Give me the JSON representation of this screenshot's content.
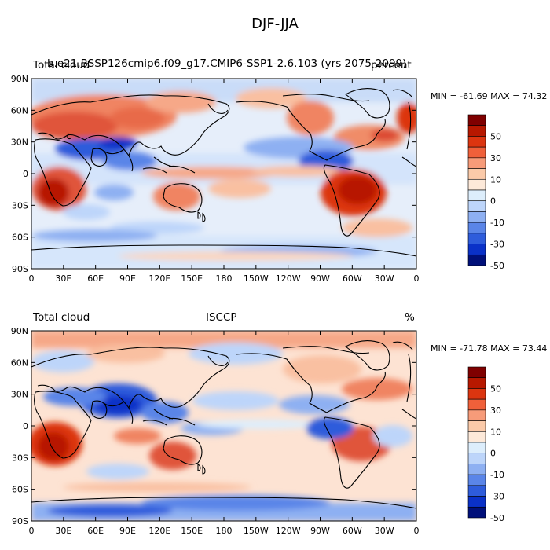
{
  "title": "DJF-JJA",
  "panels": [
    {
      "left_title": "Total cloud",
      "center_title": "b.e21.BSSP126cmip6.f09_g17.CMIP6-SSP1-2.6.103 (yrs 2075-2099)",
      "right_title": "percent",
      "minmax": "MIN = -61.69 MAX =  74.32"
    },
    {
      "left_title": "Total cloud",
      "center_title": "ISCCP",
      "right_title": "%",
      "minmax": "MIN = -71.78 MAX =  73.44"
    }
  ],
  "lat_labels": [
    "90N",
    "60N",
    "30N",
    "0",
    "30S",
    "60S",
    "90S"
  ],
  "lon_labels": [
    "0",
    "30E",
    "60E",
    "90E",
    "120E",
    "150E",
    "180",
    "150W",
    "120W",
    "90W",
    "60W",
    "30W",
    "0"
  ],
  "colorbar": {
    "labels": [
      "50",
      "30",
      "10",
      "0",
      "-10",
      "-30",
      "-50"
    ],
    "colors": [
      "#7f0000",
      "#b71800",
      "#dc3510",
      "#f0603a",
      "#f79b79",
      "#fbcaa9",
      "#fde9d9",
      "#ddeefc",
      "#bdd5fa",
      "#8eb0f2",
      "#5a85e8",
      "#2e5cdb",
      "#0a31c8",
      "#00107a"
    ]
  }
}
